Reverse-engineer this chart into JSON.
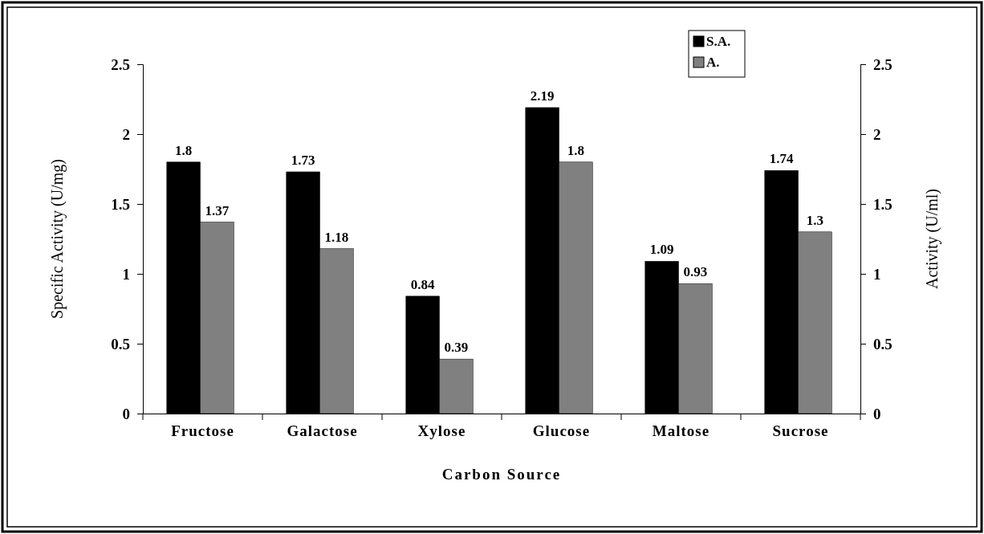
{
  "chart_data": {
    "type": "bar",
    "xlabel": "Carbon Source",
    "ylabel": "Specific Activity (U/mg)",
    "y2label": "Activity (U/ml)",
    "categories": [
      "Fructose",
      "Galactose",
      "Xylose",
      "Glucose",
      "Maltose",
      "Sucrose"
    ],
    "series": [
      {
        "name": "S.A.",
        "color": "#000000",
        "values": [
          1.8,
          1.73,
          0.84,
          2.19,
          1.09,
          1.74
        ]
      },
      {
        "name": "A.",
        "color": "#808080",
        "values": [
          1.37,
          1.18,
          0.39,
          1.8,
          0.93,
          1.3
        ]
      }
    ],
    "ylim": [
      0,
      2.5
    ],
    "yticks": [
      0,
      0.5,
      1,
      1.5,
      2,
      2.5
    ],
    "y2lim": [
      0,
      2.5
    ],
    "y2ticks": [
      0,
      0.5,
      1,
      1.5,
      2,
      2.5
    ],
    "data_labels": true,
    "legend": "top right",
    "grid": false
  }
}
